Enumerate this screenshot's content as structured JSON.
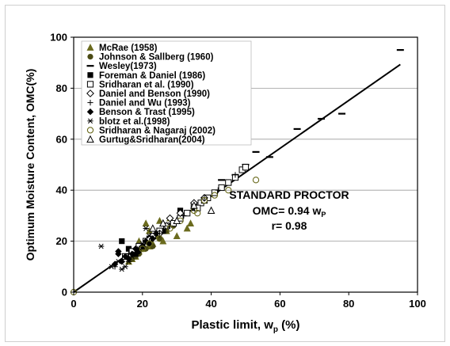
{
  "chart_data": {
    "type": "scatter",
    "xlabel": "Plastic limit, w",
    "xlabel_sub": "p",
    "xlabel_suffix": " (%)",
    "ylabel": "Optimum Moisture Content, OMC(%)",
    "xlim": [
      0,
      100
    ],
    "ylim": [
      0,
      100
    ],
    "x_ticks": [
      0,
      20,
      40,
      60,
      80,
      100
    ],
    "y_ticks": [
      0,
      20,
      40,
      60,
      80,
      100
    ],
    "grid": "horizontal",
    "legend_position": "top-left",
    "annotation": {
      "line1": "STANDARD PROCTOR",
      "line2_prefix": "OMC= 0.94 w",
      "line2_sub": "P",
      "line3": "r= 0.98"
    },
    "fit_line": {
      "slope": 0.94,
      "intercept": 0,
      "x_range": [
        0,
        95
      ]
    },
    "series": [
      {
        "name": "McRae (1958)",
        "marker": "triangle-filled",
        "color": "#6b6b1e",
        "points": [
          [
            16,
            12
          ],
          [
            17,
            13
          ],
          [
            18,
            14
          ],
          [
            19,
            16
          ],
          [
            20,
            17
          ],
          [
            21,
            27
          ],
          [
            22,
            18
          ],
          [
            23,
            19
          ],
          [
            24,
            22
          ],
          [
            25,
            28
          ],
          [
            26,
            20
          ],
          [
            27,
            24
          ],
          [
            28,
            29
          ],
          [
            30,
            22
          ],
          [
            33,
            25
          ],
          [
            34,
            27
          ],
          [
            22,
            24
          ],
          [
            19,
            20
          ]
        ]
      },
      {
        "name": "Johnson & Sallberg (1960)",
        "marker": "circle-filled",
        "color": "#4a4a14",
        "points": [
          [
            17,
            13
          ],
          [
            19,
            15
          ],
          [
            21,
            17
          ],
          [
            23,
            18
          ],
          [
            25,
            21
          ],
          [
            27,
            24
          ],
          [
            29,
            26
          ],
          [
            18,
            14
          ],
          [
            22,
            19
          ]
        ]
      },
      {
        "name": "Wesley(1973)",
        "marker": "dash",
        "color": "#000000",
        "points": [
          [
            47,
            46
          ],
          [
            50,
            50
          ],
          [
            53,
            55
          ],
          [
            57,
            53
          ],
          [
            65,
            64
          ],
          [
            72,
            68
          ],
          [
            78,
            70
          ],
          [
            95,
            95
          ],
          [
            43,
            44
          ]
        ]
      },
      {
        "name": "Foreman &  Daniel  (1986)",
        "marker": "square-filled",
        "color": "#000000",
        "points": [
          [
            14,
            20
          ],
          [
            16,
            17
          ],
          [
            18,
            15
          ],
          [
            20,
            18
          ],
          [
            22,
            21
          ],
          [
            26,
            24
          ],
          [
            31,
            32
          ],
          [
            35,
            33
          ]
        ]
      },
      {
        "name": "Sridharan et al. (1990)",
        "marker": "square-open",
        "color": "#000000",
        "points": [
          [
            15,
            14
          ],
          [
            17,
            16
          ],
          [
            19,
            18
          ],
          [
            21,
            20
          ],
          [
            23,
            22
          ],
          [
            25,
            24
          ],
          [
            27,
            26
          ],
          [
            29,
            27
          ],
          [
            31,
            29
          ],
          [
            33,
            31
          ],
          [
            35,
            34
          ],
          [
            37,
            35
          ],
          [
            39,
            37
          ],
          [
            41,
            39
          ],
          [
            43,
            41
          ],
          [
            45,
            43
          ],
          [
            47,
            45
          ],
          [
            49,
            48
          ],
          [
            50,
            49
          ],
          [
            38,
            36
          ],
          [
            36,
            33
          ]
        ]
      },
      {
        "name": "Daniel and Benson (1990)",
        "marker": "diamond-open",
        "color": "#000000",
        "points": [
          [
            22,
            21
          ],
          [
            25,
            23
          ],
          [
            27,
            26
          ],
          [
            28,
            29
          ],
          [
            31,
            31
          ],
          [
            35,
            35
          ],
          [
            38,
            37
          ]
        ]
      },
      {
        "name": "Daniel and Wu (1993)",
        "marker": "plus",
        "color": "#000000",
        "points": [
          [
            12,
            10
          ],
          [
            14,
            12
          ],
          [
            16,
            15
          ],
          [
            19,
            17
          ],
          [
            22,
            20
          ],
          [
            25,
            23
          ],
          [
            28,
            26
          ],
          [
            32,
            30
          ],
          [
            38,
            37
          ],
          [
            42,
            40
          ],
          [
            47,
            46
          ]
        ]
      },
      {
        "name": "Benson & Trast (1995)",
        "marker": "diamond-filled",
        "color": "#000000",
        "points": [
          [
            12,
            11
          ],
          [
            13,
            16
          ],
          [
            14,
            12
          ],
          [
            15,
            14
          ],
          [
            16,
            13
          ],
          [
            17,
            15
          ],
          [
            18,
            17
          ],
          [
            19,
            16
          ],
          [
            20,
            18
          ],
          [
            21,
            20
          ],
          [
            22,
            19
          ],
          [
            23,
            21
          ],
          [
            24,
            23
          ],
          [
            13,
            15
          ]
        ]
      },
      {
        "name": "blotz et al.(1998)",
        "marker": "asterisk",
        "color": "#000000",
        "points": [
          [
            8,
            18
          ],
          [
            11,
            10
          ],
          [
            13,
            12
          ],
          [
            14,
            9
          ],
          [
            15,
            10
          ],
          [
            16,
            12
          ],
          [
            17,
            14
          ],
          [
            18,
            15
          ],
          [
            19,
            17
          ],
          [
            20,
            19
          ],
          [
            21,
            25
          ],
          [
            22,
            22
          ],
          [
            24,
            23
          ]
        ]
      },
      {
        "name": "Sridharan & Nagaraj (2002)",
        "marker": "circle-open",
        "color": "#6b6b1e",
        "points": [
          [
            0,
            0
          ],
          [
            20,
            17
          ],
          [
            22,
            19
          ],
          [
            25,
            21
          ],
          [
            28,
            25
          ],
          [
            31,
            28
          ],
          [
            35,
            32
          ],
          [
            38,
            36
          ],
          [
            41,
            38
          ],
          [
            45,
            40
          ],
          [
            53,
            44
          ],
          [
            36,
            31
          ]
        ]
      },
      {
        "name": "Gurtug&Sridharan(2004)",
        "marker": "triangle-open",
        "color": "#000000",
        "points": [
          [
            40,
            32
          ],
          [
            35,
            34
          ],
          [
            30,
            28
          ],
          [
            26,
            27
          ],
          [
            23,
            25
          ]
        ]
      }
    ]
  }
}
